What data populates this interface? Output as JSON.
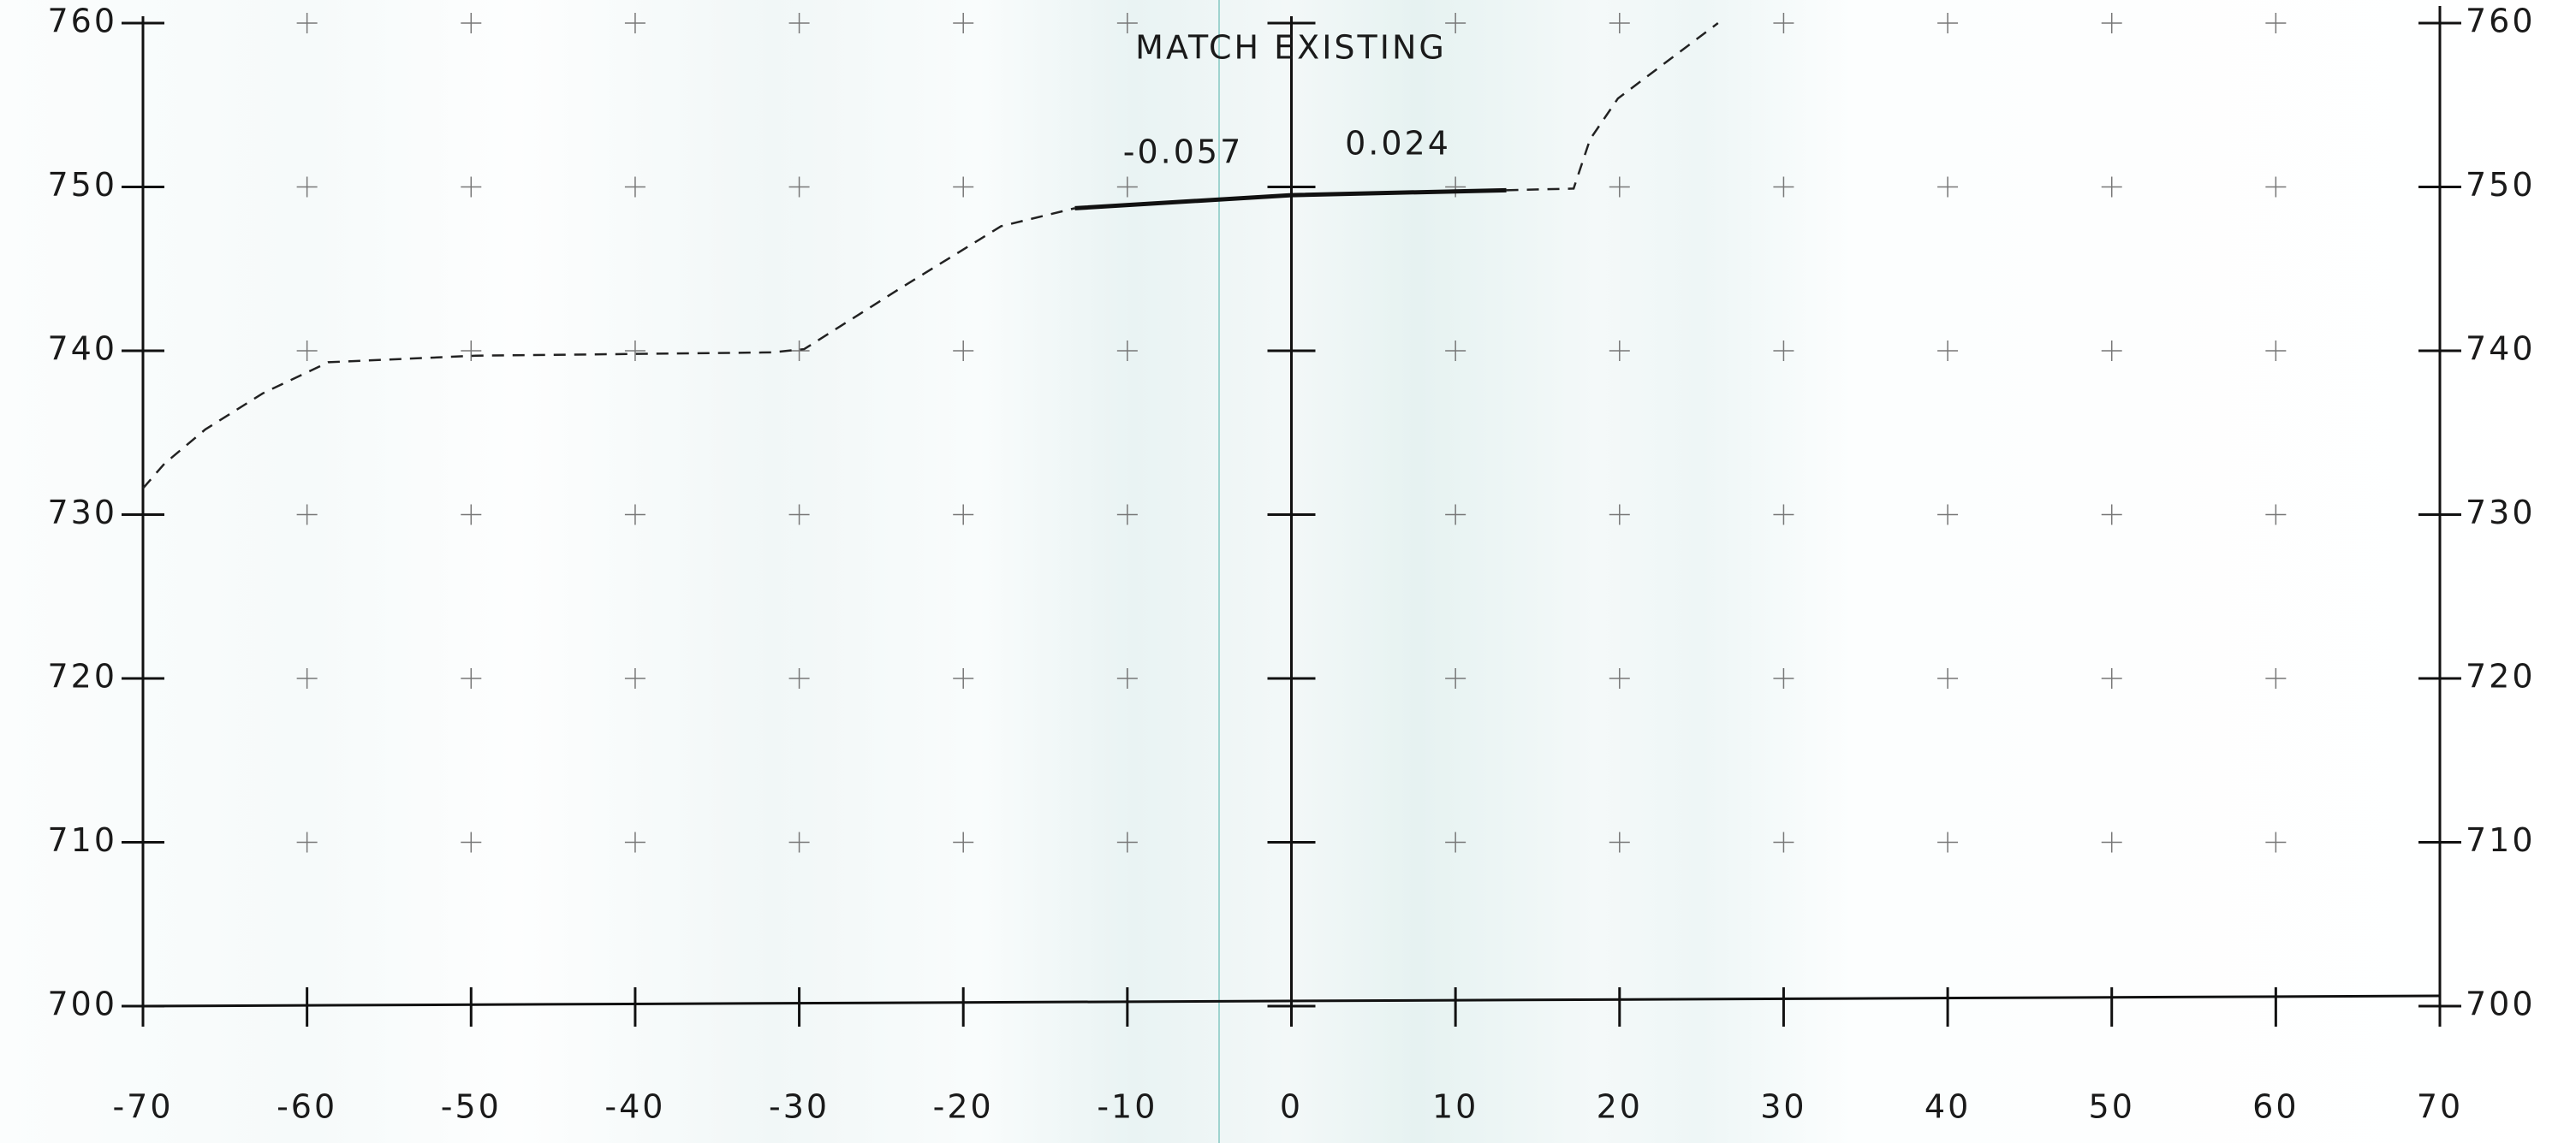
{
  "chart_data": {
    "type": "line",
    "annotations": [
      "MATCH EXISTING",
      "-0.057",
      "0.024"
    ],
    "xlim": [
      -70,
      70
    ],
    "xticks": [
      -70,
      -60,
      -50,
      -40,
      -30,
      -20,
      -10,
      0,
      10,
      20,
      30,
      40,
      50,
      60,
      70
    ],
    "ylim": [
      700,
      760
    ],
    "yticks": [
      700,
      710,
      720,
      730,
      740,
      750,
      760
    ],
    "grid": true,
    "series": [
      {
        "style": "dashed",
        "color": "#222222",
        "x": [
          -70,
          -68.7,
          -66.2,
          -62.7,
          -58.7,
          -49.7,
          -31.7,
          -29.7,
          -23.7,
          -17.7,
          -13.2,
          null,
          13.1,
          17.2,
          18.2,
          19.9,
          26
        ],
        "values": [
          731.6,
          733.1,
          735.2,
          737.4,
          739.3,
          739.7,
          739.9,
          740.1,
          743.9,
          747.6,
          748.7,
          null,
          749.8,
          749.9,
          752.9,
          755.4,
          760
        ]
      },
      {
        "style": "solid",
        "color": "#111111",
        "x": [
          -13.2,
          0,
          13.1
        ],
        "values": [
          748.7,
          749.5,
          749.8
        ]
      }
    ]
  }
}
